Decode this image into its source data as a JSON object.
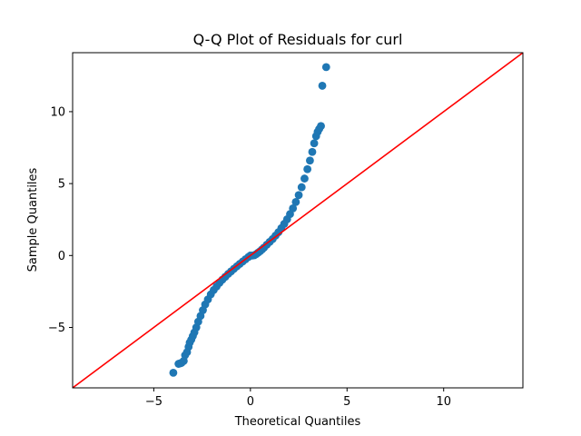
{
  "chart_data": {
    "type": "scatter",
    "title": "Q-Q Plot of Residuals for curl",
    "xlabel": "Theoretical Quantiles",
    "ylabel": "Sample Quantiles",
    "xlim": [
      -9.2,
      14.1
    ],
    "ylim": [
      -9.2,
      14.1
    ],
    "xticks": [
      -5,
      0,
      5,
      10
    ],
    "yticks": [
      -5,
      0,
      5,
      10
    ],
    "tick_labels": {
      "x": [
        "−5",
        "0",
        "5",
        "10"
      ],
      "y": [
        "−5",
        "0",
        "5",
        "10"
      ]
    },
    "grid": false,
    "legend": "none",
    "reference_line": {
      "slope": 1,
      "intercept": 0,
      "color": "#ff0000"
    },
    "colors": {
      "points": "#1f77b4",
      "reference_line": "#ff0000"
    },
    "series": [
      {
        "points": [
          [
            -3.99,
            -8.15
          ],
          [
            -3.72,
            -7.53
          ],
          [
            -3.62,
            -7.49
          ],
          [
            -3.56,
            -7.46
          ],
          [
            -3.45,
            -7.33
          ],
          [
            -3.38,
            -6.93
          ],
          [
            -3.28,
            -6.72
          ],
          [
            -3.2,
            -6.35
          ],
          [
            -3.14,
            -6.05
          ],
          [
            -3.06,
            -5.85
          ],
          [
            -2.98,
            -5.6
          ],
          [
            -2.9,
            -5.35
          ],
          [
            -2.8,
            -5.0
          ],
          [
            -2.7,
            -4.6
          ],
          [
            -2.58,
            -4.2
          ],
          [
            -2.46,
            -3.8
          ],
          [
            -2.34,
            -3.4
          ],
          [
            -2.2,
            -3.05
          ],
          [
            -2.05,
            -2.7
          ],
          [
            -1.9,
            -2.4
          ],
          [
            -1.75,
            -2.15
          ],
          [
            -1.6,
            -1.9
          ],
          [
            -1.45,
            -1.68
          ],
          [
            -1.3,
            -1.48
          ],
          [
            -1.15,
            -1.28
          ],
          [
            -1.0,
            -1.1
          ],
          [
            -0.85,
            -0.92
          ],
          [
            -0.7,
            -0.75
          ],
          [
            -0.55,
            -0.58
          ],
          [
            -0.4,
            -0.42
          ],
          [
            -0.25,
            -0.26
          ],
          [
            -0.1,
            -0.1
          ],
          [
            0.0,
            0.0
          ],
          [
            0.1,
            0.0
          ],
          [
            0.2,
            0.02
          ],
          [
            0.3,
            0.1
          ],
          [
            0.4,
            0.2
          ],
          [
            0.5,
            0.3
          ],
          [
            0.6,
            0.42
          ],
          [
            0.7,
            0.55
          ],
          [
            0.85,
            0.75
          ],
          [
            1.0,
            0.95
          ],
          [
            1.15,
            1.15
          ],
          [
            1.3,
            1.38
          ],
          [
            1.45,
            1.62
          ],
          [
            1.6,
            1.9
          ],
          [
            1.75,
            2.2
          ],
          [
            1.9,
            2.52
          ],
          [
            2.05,
            2.88
          ],
          [
            2.2,
            3.28
          ],
          [
            2.35,
            3.72
          ],
          [
            2.5,
            4.2
          ],
          [
            2.65,
            4.75
          ],
          [
            2.8,
            5.35
          ],
          [
            2.95,
            6.0
          ],
          [
            3.08,
            6.6
          ],
          [
            3.2,
            7.2
          ],
          [
            3.3,
            7.8
          ],
          [
            3.4,
            8.3
          ],
          [
            3.48,
            8.6
          ],
          [
            3.56,
            8.8
          ],
          [
            3.65,
            9.0
          ],
          [
            3.72,
            11.8
          ],
          [
            3.92,
            13.1
          ]
        ]
      }
    ]
  }
}
